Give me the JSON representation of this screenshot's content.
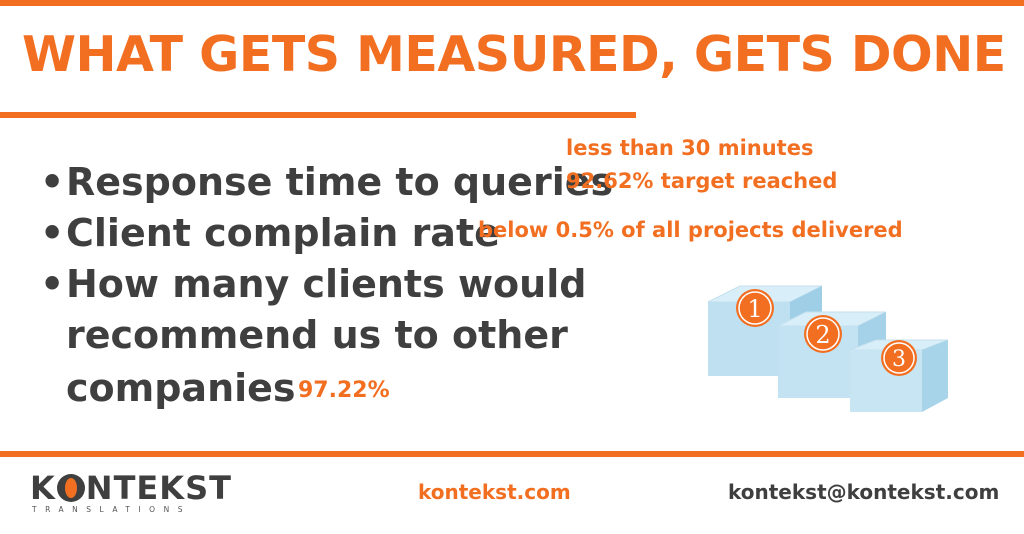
{
  "title": "WHAT GETS MEASURED, GETS DONE",
  "bullets": [
    {
      "lines": [
        "Response time to queries"
      ],
      "notes": [
        "less than 30 minutes",
        "92.62% target reached"
      ]
    },
    {
      "lines": [
        "Client complain rate"
      ],
      "notes": [
        "below 0.5% of all projects delivered"
      ]
    },
    {
      "lines": [
        "How many clients would",
        "recommend us to other",
        "companies"
      ],
      "notes": [
        "97.22%"
      ]
    }
  ],
  "podium": {
    "labels": [
      "1",
      "2",
      "3"
    ],
    "icon": "podium-icon"
  },
  "footer": {
    "logo": {
      "word_left": "K",
      "word_right": "NTEKST",
      "sub": "TRANSLATIONS"
    },
    "website": "kontekst.com",
    "email": "kontekst@kontekst.com"
  },
  "colors": {
    "accent": "#f26f21",
    "text": "#3f3f3f",
    "podium": "#bcdff0"
  }
}
